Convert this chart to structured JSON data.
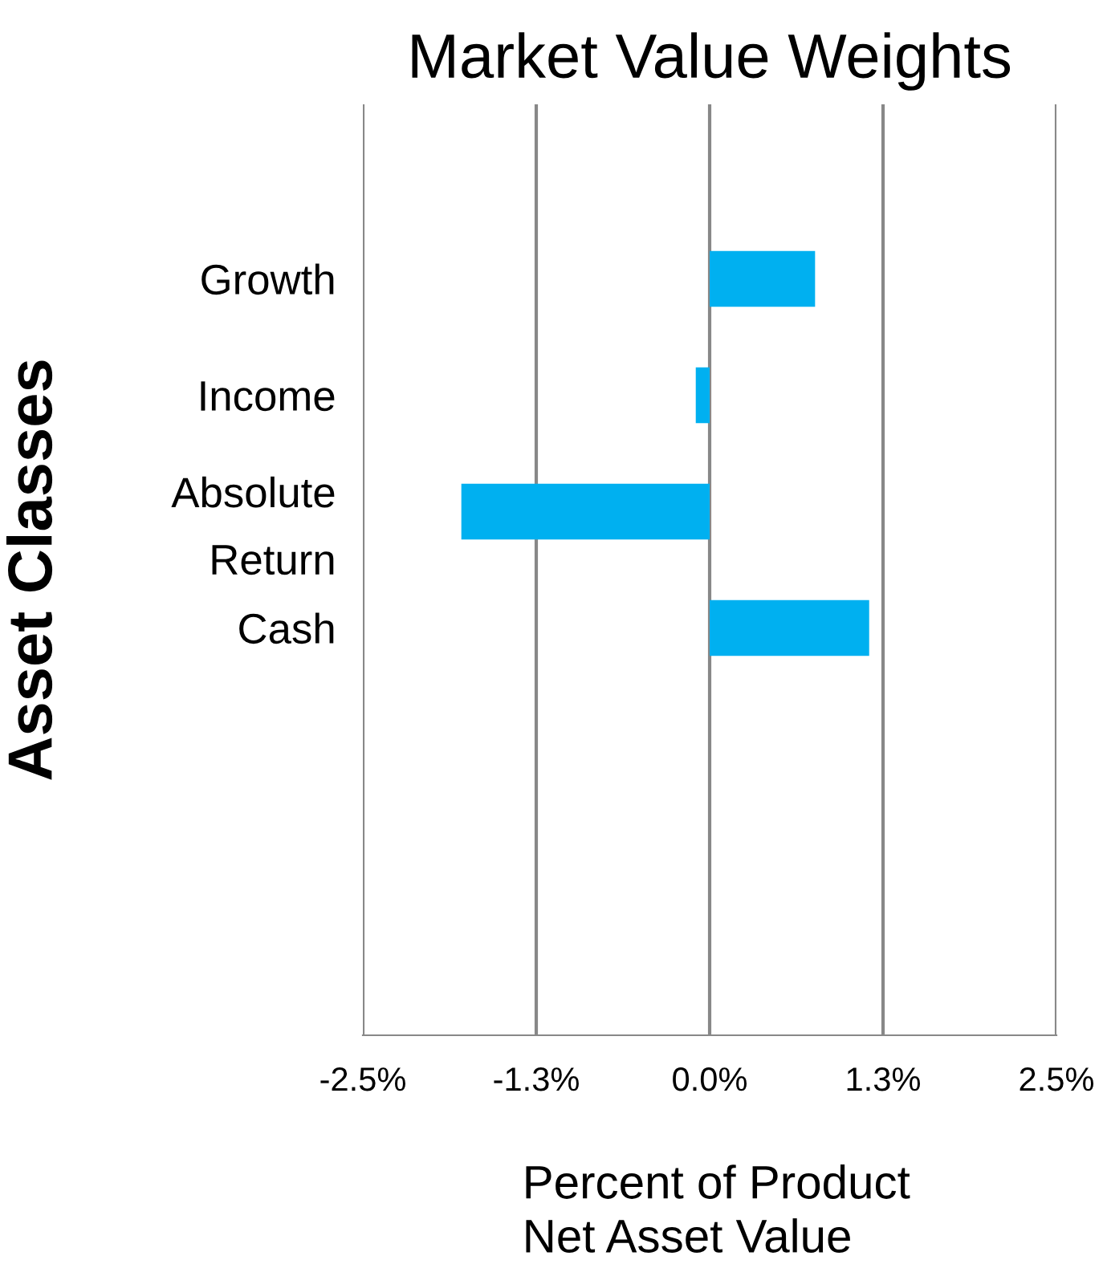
{
  "chart_data": {
    "type": "bar",
    "orientation": "horizontal",
    "title": "Market Value Weights",
    "xlabel": "Percent of Product\nNet Asset Value",
    "ylabel": "Asset Classes",
    "categories": [
      null,
      "Growth",
      "Income",
      "Absolute\nReturn",
      "Cash",
      null,
      null,
      null
    ],
    "series": [
      {
        "color": "#00b0f0",
        "values": [
          null,
          0.76,
          -0.1,
          -1.79,
          1.15,
          null,
          null,
          null
        ]
      }
    ],
    "xlim": [
      -2.5,
      2.5
    ],
    "xticks": [
      {
        "value": -2.5,
        "label": "-2.5%"
      },
      {
        "value": -1.25,
        "label": "-1.3%"
      },
      {
        "value": 0,
        "label": "0.0%"
      },
      {
        "value": 1.25,
        "label": "1.3%"
      },
      {
        "value": 2.5,
        "label": "2.5%"
      }
    ],
    "grid": "x",
    "legend": false
  }
}
